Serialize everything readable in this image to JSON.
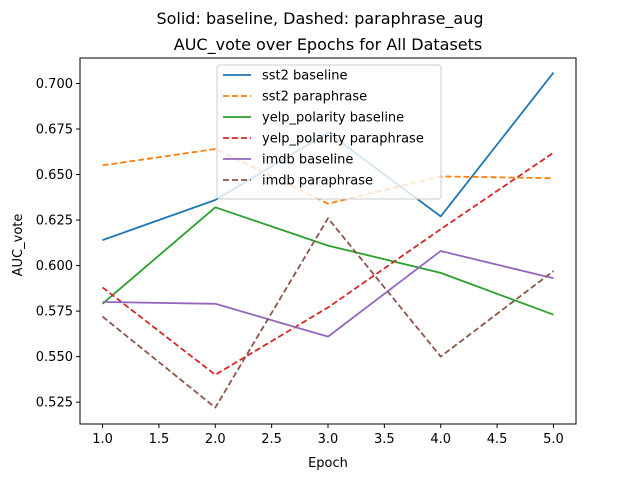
{
  "chart_data": {
    "type": "line",
    "suptitle": "Solid: baseline, Dashed: paraphrase_aug",
    "title": "AUC_vote over Epochs for All Datasets",
    "xlabel": "Epoch",
    "ylabel": "AUC_vote",
    "xlim": [
      0.8,
      5.2
    ],
    "ylim": [
      0.513,
      0.714
    ],
    "xticks": [
      "1.0",
      "1.5",
      "2.0",
      "2.5",
      "3.0",
      "3.5",
      "4.0",
      "4.5",
      "5.0"
    ],
    "yticks": [
      "0.525",
      "0.550",
      "0.575",
      "0.600",
      "0.625",
      "0.650",
      "0.675",
      "0.700"
    ],
    "grid": false,
    "legend_position": "top-center",
    "x": [
      1,
      2,
      3,
      4,
      5
    ],
    "series": [
      {
        "name": "sst2 baseline",
        "color": "#1f77b4",
        "style": "solid",
        "values": [
          0.614,
          0.636,
          0.673,
          0.627,
          0.706
        ]
      },
      {
        "name": "sst2 paraphrase",
        "color": "#ff7f0e",
        "style": "dashed",
        "values": [
          0.655,
          0.664,
          0.634,
          0.649,
          0.648
        ]
      },
      {
        "name": "yelp_polarity baseline",
        "color": "#2ca02c",
        "style": "solid",
        "values": [
          0.579,
          0.632,
          0.611,
          0.596,
          0.573
        ]
      },
      {
        "name": "yelp_polarity paraphrase",
        "color": "#d62728",
        "style": "dashed",
        "values": [
          0.588,
          0.54,
          0.577,
          0.62,
          0.662
        ]
      },
      {
        "name": "imdb baseline",
        "color": "#9467bd",
        "style": "solid",
        "values": [
          0.58,
          0.579,
          0.561,
          0.608,
          0.593
        ]
      },
      {
        "name": "imdb paraphrase",
        "color": "#8c564b",
        "style": "dashed",
        "values": [
          0.572,
          0.522,
          0.626,
          0.55,
          0.597
        ]
      }
    ]
  }
}
